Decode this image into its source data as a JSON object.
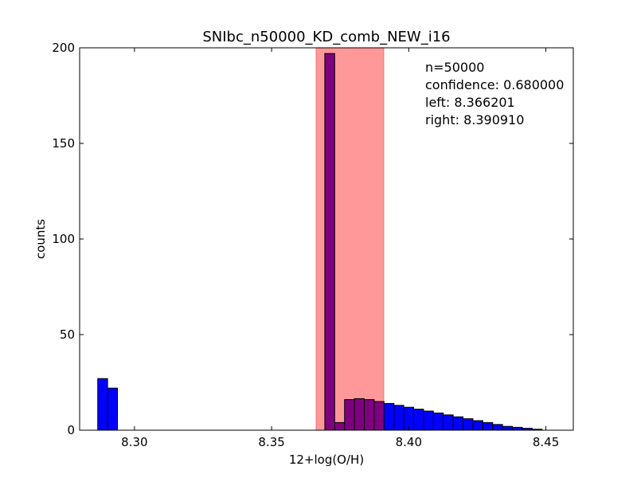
{
  "chart_data": {
    "type": "bar",
    "title": "SNIbc_n50000_KD_comb_NEW_i16",
    "xlabel": "12+log(O/H)",
    "ylabel": "counts",
    "xlim": [
      8.28,
      8.46
    ],
    "ylim": [
      0,
      200
    ],
    "xticks": [
      {
        "value": 8.3,
        "label": "8.30"
      },
      {
        "value": 8.35,
        "label": "8.35"
      },
      {
        "value": 8.4,
        "label": "8.40"
      },
      {
        "value": 8.45,
        "label": "8.45"
      }
    ],
    "yticks": [
      {
        "value": 0,
        "label": "0"
      },
      {
        "value": 50,
        "label": "50"
      },
      {
        "value": 100,
        "label": "100"
      },
      {
        "value": 150,
        "label": "150"
      },
      {
        "value": 200,
        "label": "200"
      }
    ],
    "bin_width": 0.0036,
    "bins": [
      {
        "x": 8.2866,
        "count": 27
      },
      {
        "x": 8.2902,
        "count": 22
      },
      {
        "x": 8.3694,
        "count": 197
      },
      {
        "x": 8.373,
        "count": 4
      },
      {
        "x": 8.3766,
        "count": 16
      },
      {
        "x": 8.3802,
        "count": 16.5
      },
      {
        "x": 8.3838,
        "count": 16
      },
      {
        "x": 8.3874,
        "count": 15
      },
      {
        "x": 8.391,
        "count": 14
      },
      {
        "x": 8.3946,
        "count": 13
      },
      {
        "x": 8.3982,
        "count": 12
      },
      {
        "x": 8.4018,
        "count": 11
      },
      {
        "x": 8.4054,
        "count": 10
      },
      {
        "x": 8.409,
        "count": 9
      },
      {
        "x": 8.4126,
        "count": 8
      },
      {
        "x": 8.4162,
        "count": 7
      },
      {
        "x": 8.4198,
        "count": 6
      },
      {
        "x": 8.4234,
        "count": 5
      },
      {
        "x": 8.427,
        "count": 4
      },
      {
        "x": 8.4306,
        "count": 3
      },
      {
        "x": 8.4342,
        "count": 2
      },
      {
        "x": 8.4378,
        "count": 1.5
      },
      {
        "x": 8.4414,
        "count": 1
      },
      {
        "x": 8.445,
        "count": 0.5
      }
    ],
    "bar_color": "#0000ff",
    "overlap_bar_color": "#7f007f",
    "confidence_region": {
      "left": 8.366201,
      "right": 8.39091,
      "color": "#ff0000",
      "alpha": 0.4
    },
    "annotation": {
      "lines": [
        "n=50000",
        "confidence: 0.680000",
        "left: 8.366201",
        "right: 8.390910"
      ],
      "position": "top-right"
    },
    "grid": false
  }
}
